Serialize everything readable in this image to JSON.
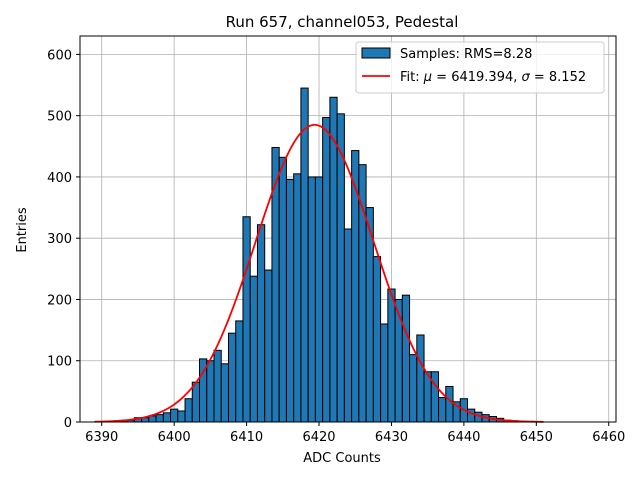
{
  "chart_data": {
    "type": "bar",
    "title": "Run 657, channel053, Pedestal",
    "xlabel": "ADC Counts",
    "ylabel": "Entries",
    "xlim": [
      6387,
      6461
    ],
    "ylim": [
      0,
      630
    ],
    "xticks": [
      6390,
      6400,
      6410,
      6420,
      6430,
      6440,
      6450,
      6460
    ],
    "yticks": [
      0,
      100,
      200,
      300,
      400,
      500,
      600
    ],
    "grid": true,
    "legend_position": "top-right",
    "histogram": {
      "name": "Samples: RMS=8.28",
      "bin_width": 1,
      "bin_start": 6389.5,
      "counts": [
        0,
        1,
        1,
        2,
        3,
        7,
        7,
        10,
        12,
        15,
        21,
        18,
        38,
        65,
        103,
        100,
        117,
        95,
        145,
        165,
        335,
        238,
        322,
        248,
        448,
        432,
        396,
        405,
        545,
        400,
        400,
        497,
        530,
        503,
        315,
        443,
        420,
        350,
        270,
        160,
        217,
        200,
        207,
        110,
        142,
        82,
        82,
        40,
        58,
        33,
        38,
        21,
        16,
        12,
        9,
        6,
        3,
        2,
        1,
        1,
        0,
        0
      ],
      "color": "#1f77b4",
      "edgecolor": "#000000"
    },
    "series": [
      {
        "name": "Fit: μ = 6419.394, σ = 8.152",
        "type": "line",
        "function": "gaussian",
        "mu": 6419.394,
        "sigma": 8.152,
        "amplitude": 485,
        "x_range": [
          6389,
          6451
        ],
        "color": "#ff0000"
      }
    ],
    "legend": [
      {
        "label_prefix": "Samples: RMS=8.28",
        "kind": "patch"
      },
      {
        "label_prefix": "Fit: ",
        "mu_symbol": "μ",
        "mu_text": " = 6419.394, ",
        "sigma_symbol": "σ",
        "sigma_text": " = 8.152",
        "kind": "line"
      }
    ]
  }
}
